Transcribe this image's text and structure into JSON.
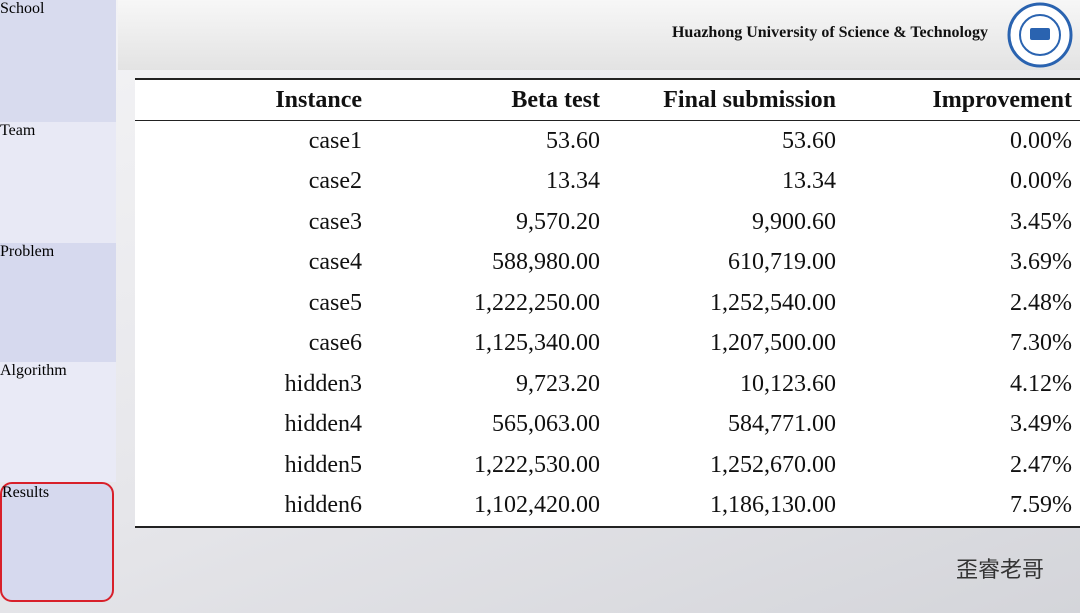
{
  "nav": [
    "School",
    "Team",
    "Problem",
    "Algorithm",
    "Results"
  ],
  "header": {
    "title": "Huazhong University of Science & Technology"
  },
  "table": {
    "columns": [
      "Instance",
      "Beta test",
      "Final submission",
      "Improvement"
    ],
    "rows": [
      [
        "case1",
        "53.60",
        "53.60",
        "0.00%"
      ],
      [
        "case2",
        "13.34",
        "13.34",
        "0.00%"
      ],
      [
        "case3",
        "9,570.20",
        "9,900.60",
        "3.45%"
      ],
      [
        "case4",
        "588,980.00",
        "610,719.00",
        "3.69%"
      ],
      [
        "case5",
        "1,222,250.00",
        "1,252,540.00",
        "2.48%"
      ],
      [
        "case6",
        "1,125,340.00",
        "1,207,500.00",
        "7.30%"
      ],
      [
        "hidden3",
        "9,723.20",
        "10,123.60",
        "4.12%"
      ],
      [
        "hidden4",
        "565,063.00",
        "584,771.00",
        "3.49%"
      ],
      [
        "hidden5",
        "1,222,530.00",
        "1,252,670.00",
        "2.47%"
      ],
      [
        "hidden6",
        "1,102,420.00",
        "1,186,130.00",
        "7.59%"
      ]
    ]
  },
  "watermark": "歪睿老哥"
}
